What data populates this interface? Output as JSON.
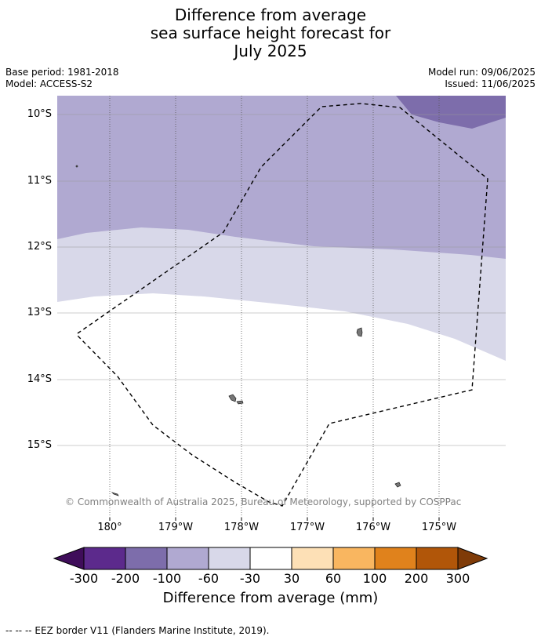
{
  "title": {
    "line1": "Difference from average",
    "line2": "sea surface height forecast for",
    "line3": "July 2025"
  },
  "meta": {
    "base_period": "Base period: 1981-2018",
    "model": "Model: ACCESS-S2",
    "model_run": "Model run: 09/06/2025",
    "issued": "Issued: 11/06/2025"
  },
  "map": {
    "lat_labels": [
      "10°S",
      "11°S",
      "12°S",
      "13°S",
      "14°S",
      "15°S"
    ],
    "lon_labels": [
      "180°",
      "179°W",
      "178°W",
      "177°W",
      "176°W",
      "175°W"
    ],
    "copyright": "© Commonwealth of Australia 2025, Bureau of Meteorology, supported by COSPPac",
    "border_style": "dashed"
  },
  "colorbar": {
    "title": "Difference from average (mm)",
    "ticks": [
      "-300",
      "-200",
      "-100",
      "-60",
      "-30",
      "30",
      "60",
      "100",
      "200",
      "300"
    ],
    "colors": [
      "#3f0d5a",
      "#5c2a8c",
      "#7d6dab",
      "#b0a9d1",
      "#d8d8e9",
      "#ffffff",
      "#fde0b6",
      "#f9b660",
      "#e0821c",
      "#b15609",
      "#7f3b08"
    ]
  },
  "footer": {
    "legend": "--  --  -- EEZ border V11 (Flanders Marine Institute, 2019)."
  }
}
